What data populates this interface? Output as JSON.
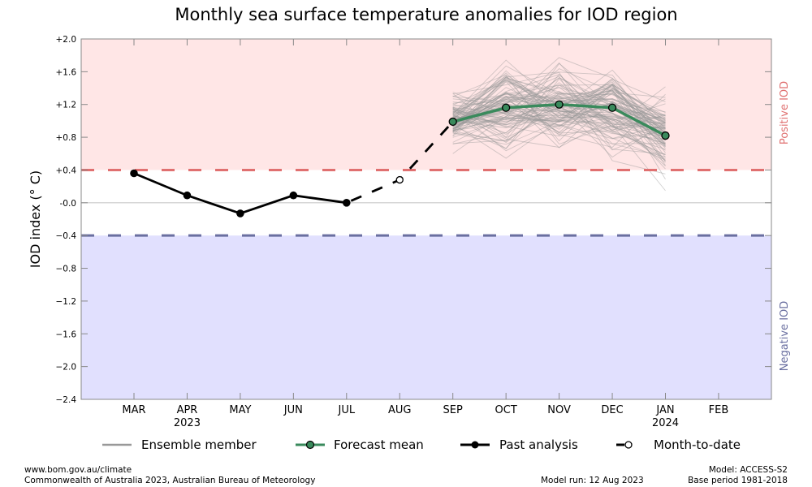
{
  "chart_data": {
    "type": "line",
    "title": "Monthly sea surface temperature anomalies for IOD region",
    "ylabel": "IOD index (° C)",
    "xlabel": "",
    "ylim": [
      -2.4,
      2.0
    ],
    "y_ticks": [
      "+2.0",
      "+1.6",
      "+1.2",
      "+0.8",
      "+0.4",
      "-0.0",
      "−0.4",
      "−0.8",
      "−1.2",
      "−1.6",
      "−2.0",
      "−2.4"
    ],
    "y_tick_values": [
      2.0,
      1.6,
      1.2,
      0.8,
      0.4,
      0.0,
      -0.4,
      -0.8,
      -1.2,
      -1.6,
      -2.0,
      -2.4
    ],
    "categories": [
      "MAR",
      "APR",
      "MAY",
      "JUN",
      "JUL",
      "AUG",
      "SEP",
      "OCT",
      "NOV",
      "DEC",
      "JAN",
      "FEB"
    ],
    "year_labels": [
      {
        "month": "APR",
        "year": "2023"
      },
      {
        "month": "JAN",
        "year": "2024"
      }
    ],
    "thresholds": {
      "positive": 0.4,
      "negative": -0.4,
      "positive_label": "Positive IOD",
      "negative_label": "Negative IOD",
      "positive_color": "#e07070",
      "negative_color": "#6a6fa0",
      "positive_fill": "#ffe6e6",
      "negative_fill": "#e1e0fe"
    },
    "series": [
      {
        "name": "Past analysis",
        "color": "#000000",
        "months": [
          "MAR",
          "APR",
          "MAY",
          "JUN",
          "JUL"
        ],
        "values": [
          0.36,
          0.09,
          -0.13,
          0.09,
          0.0
        ]
      },
      {
        "name": "Month-to-date",
        "color": "#000000",
        "months": [
          "AUG"
        ],
        "values": [
          0.28
        ]
      },
      {
        "name": "Forecast mean",
        "color": "#3a8a5c",
        "months": [
          "SEP",
          "OCT",
          "NOV",
          "DEC",
          "JAN"
        ],
        "values": [
          0.99,
          1.16,
          1.2,
          1.16,
          0.82
        ]
      }
    ],
    "ensemble": {
      "name": "Ensemble member",
      "color": "#999999",
      "months": [
        "SEP",
        "OCT",
        "NOV",
        "DEC",
        "JAN"
      ],
      "count": 99,
      "spread_min": [
        0.3,
        0.18,
        0.3,
        0.4,
        -0.1
      ],
      "spread_max": [
        1.7,
        2.0,
        2.0,
        1.8,
        1.55
      ]
    },
    "legend": {
      "placement": "bottom",
      "items": [
        "Ensemble member",
        "Forecast mean",
        "Past analysis",
        "Month-to-date"
      ]
    }
  },
  "footer": {
    "url": "www.bom.gov.au/climate",
    "copyright": "Commonwealth of Australia 2023, Australian Bureau of Meteorology",
    "model_run": "Model run: 12 Aug 2023",
    "model": "Model: ACCESS-S2",
    "base_period": "Base period 1981-2018"
  }
}
